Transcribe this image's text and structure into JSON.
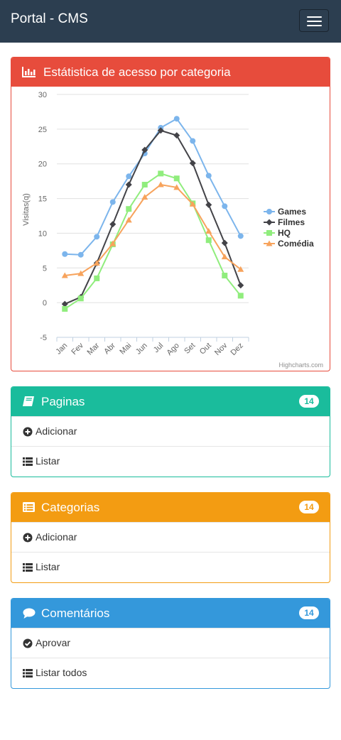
{
  "navbar": {
    "brand": "Portal - CMS",
    "toggle_icon": "hamburger-icon"
  },
  "stats_panel": {
    "title": "Estátistica de acesso por categoria",
    "icon": "bar-chart-icon",
    "color": "#e74c3c",
    "credit": "Highcharts.com"
  },
  "chart_data": {
    "type": "line",
    "ylabel": "Visitas(q)",
    "ylim": [
      -5,
      30
    ],
    "yticks": [
      -5,
      0,
      5,
      10,
      15,
      20,
      25,
      30
    ],
    "categories": [
      "Jan",
      "Fev",
      "Mar",
      "Abr",
      "Mai",
      "Jun",
      "Jul",
      "Ago",
      "Set",
      "Out",
      "Nov",
      "Dez"
    ],
    "legend_position": "right",
    "grid": true,
    "series": [
      {
        "name": "Games",
        "color": "#7cb5ec",
        "marker": "circle",
        "values": [
          7.0,
          6.9,
          9.5,
          14.5,
          18.2,
          21.5,
          25.2,
          26.5,
          23.3,
          18.3,
          13.9,
          9.6
        ]
      },
      {
        "name": "Filmes",
        "color": "#434348",
        "marker": "diamond",
        "values": [
          -0.2,
          0.8,
          5.7,
          11.3,
          17.0,
          22.0,
          24.8,
          24.1,
          20.1,
          14.1,
          8.6,
          2.5
        ]
      },
      {
        "name": "HQ",
        "color": "#90ed7d",
        "marker": "square",
        "values": [
          -0.9,
          0.6,
          3.5,
          8.4,
          13.5,
          17.0,
          18.6,
          17.9,
          14.3,
          9.0,
          3.9,
          1.0
        ]
      },
      {
        "name": "Comédia",
        "color": "#f7a35c",
        "marker": "triangle",
        "values": [
          3.9,
          4.2,
          5.7,
          8.5,
          11.9,
          15.2,
          17.0,
          16.6,
          14.2,
          10.3,
          6.6,
          4.8
        ]
      }
    ]
  },
  "pages_panel": {
    "title": "Paginas",
    "badge": "14",
    "color": "#1abc9c",
    "icon": "book-icon",
    "items": [
      {
        "label": "Adicionar",
        "icon": "plus-circle-icon"
      },
      {
        "label": "Listar",
        "icon": "list-icon"
      }
    ]
  },
  "categories_panel": {
    "title": "Categorias",
    "badge": "14",
    "color": "#f39c12",
    "icon": "list-alt-icon",
    "items": [
      {
        "label": "Adicionar",
        "icon": "plus-circle-icon"
      },
      {
        "label": "Listar",
        "icon": "list-icon"
      }
    ]
  },
  "comments_panel": {
    "title": "Comentários",
    "badge": "14",
    "color": "#3498db",
    "icon": "comment-icon",
    "items": [
      {
        "label": "Aprovar",
        "icon": "check-circle-icon"
      },
      {
        "label": "Listar todos",
        "icon": "list-icon"
      }
    ]
  }
}
